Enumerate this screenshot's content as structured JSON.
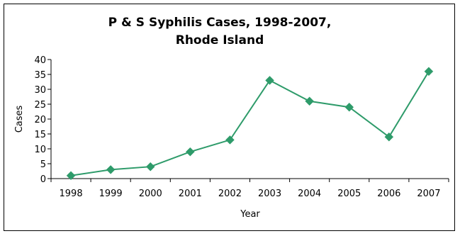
{
  "chart_data": {
    "type": "line",
    "title_line1": "P & S Syphilis Cases, 1998-2007,",
    "title_line2": "Rhode Island",
    "xlabel": "Year",
    "ylabel": "Cases",
    "categories": [
      "1998",
      "1999",
      "2000",
      "2001",
      "2002",
      "2003",
      "2004",
      "2005",
      "2006",
      "2007"
    ],
    "values": [
      1,
      3,
      4,
      9,
      13,
      33,
      26,
      24,
      14,
      36
    ],
    "ylim": [
      0,
      40
    ],
    "yticks": [
      "0",
      "5",
      "10",
      "15",
      "20",
      "25",
      "30",
      "35",
      "40"
    ],
    "grid": false,
    "legend": "none",
    "line_color": "#2e9b6a",
    "marker_color": "#2e9b6a",
    "marker_shape": "diamond"
  }
}
